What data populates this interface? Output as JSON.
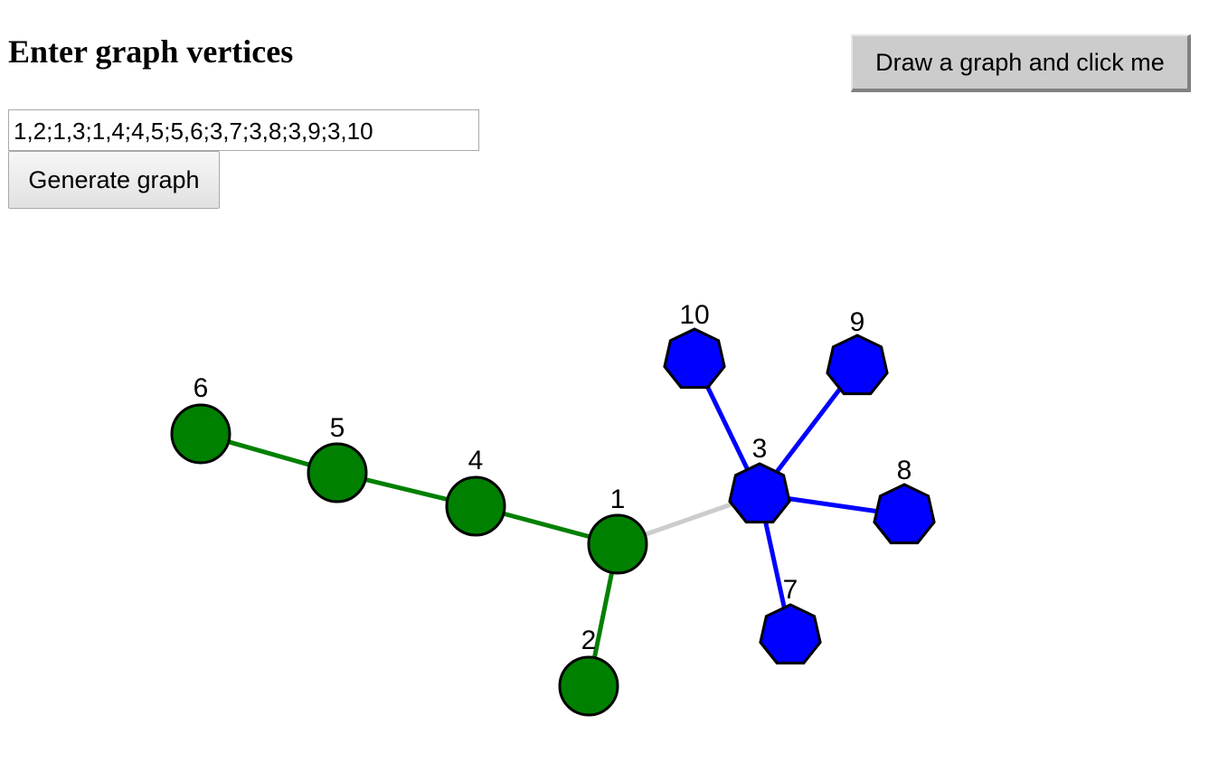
{
  "header": {
    "title": "Enter graph vertices"
  },
  "toolbar": {
    "draw_button_label": "Draw a graph and click me",
    "generate_button_label": "Generate graph"
  },
  "input": {
    "vertices_value": "1,2;1,3;1,4;4,5;5,6;3,7;3,8;3,9;3,10"
  },
  "graph": {
    "colors": {
      "green_component": "#008000",
      "blue_component": "#0000ff",
      "bridge_edge": "#cccccc",
      "outline": "#000000"
    },
    "vertices": [
      {
        "id": "1",
        "label": "1",
        "shape": "circle",
        "group": "green"
      },
      {
        "id": "2",
        "label": "2",
        "shape": "circle",
        "group": "green"
      },
      {
        "id": "3",
        "label": "3",
        "shape": "heptagon",
        "group": "blue"
      },
      {
        "id": "4",
        "label": "4",
        "shape": "circle",
        "group": "green"
      },
      {
        "id": "5",
        "label": "5",
        "shape": "circle",
        "group": "green"
      },
      {
        "id": "6",
        "label": "6",
        "shape": "circle",
        "group": "green"
      },
      {
        "id": "7",
        "label": "7",
        "shape": "heptagon",
        "group": "blue"
      },
      {
        "id": "8",
        "label": "8",
        "shape": "heptagon",
        "group": "blue"
      },
      {
        "id": "9",
        "label": "9",
        "shape": "heptagon",
        "group": "blue"
      },
      {
        "id": "10",
        "label": "10",
        "shape": "heptagon",
        "group": "blue"
      }
    ],
    "edges": [
      {
        "from": "1",
        "to": "2",
        "group": "green"
      },
      {
        "from": "1",
        "to": "3",
        "group": "bridge"
      },
      {
        "from": "1",
        "to": "4",
        "group": "green"
      },
      {
        "from": "4",
        "to": "5",
        "group": "green"
      },
      {
        "from": "5",
        "to": "6",
        "group": "green"
      },
      {
        "from": "3",
        "to": "7",
        "group": "blue"
      },
      {
        "from": "3",
        "to": "8",
        "group": "blue"
      },
      {
        "from": "3",
        "to": "9",
        "group": "blue"
      },
      {
        "from": "3",
        "to": "10",
        "group": "blue"
      }
    ]
  }
}
